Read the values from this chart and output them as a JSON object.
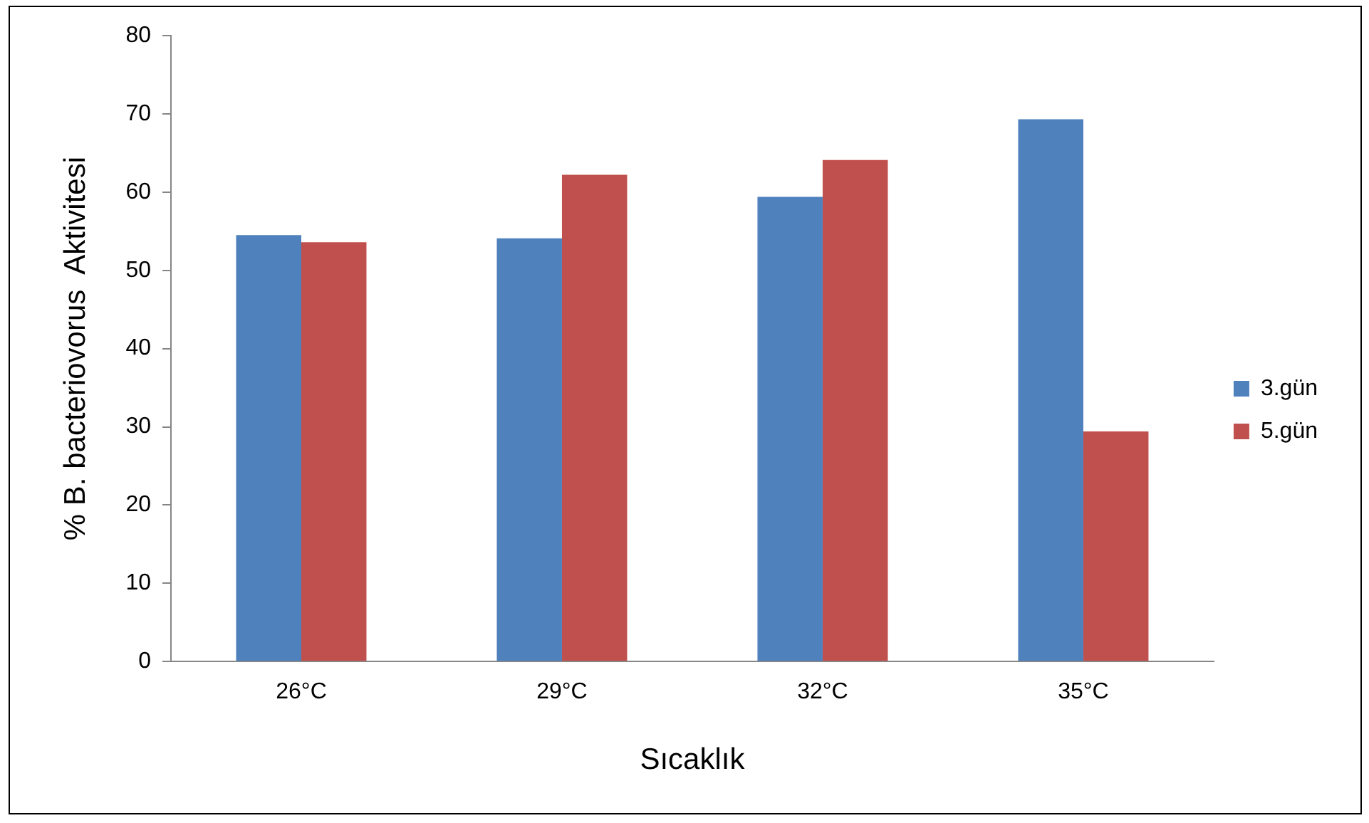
{
  "chart_data": {
    "type": "bar",
    "xlabel": "Sıcaklık",
    "ylabel": "% B. bacteriovorus  Aktivitesi",
    "categories": [
      "26°C",
      "29°C",
      "32°C",
      "35°C"
    ],
    "series": [
      {
        "name": "3.gün",
        "color": "#4f81bd",
        "values": [
          54.5,
          54.1,
          59.4,
          69.3
        ]
      },
      {
        "name": "5.gün",
        "color": "#c0504d",
        "values": [
          53.6,
          62.2,
          64.1,
          29.4
        ]
      }
    ],
    "ylim": [
      0,
      80
    ],
    "yticks": [
      0,
      10,
      20,
      30,
      40,
      50,
      60,
      70,
      80
    ],
    "grid": false,
    "legend": "right"
  }
}
